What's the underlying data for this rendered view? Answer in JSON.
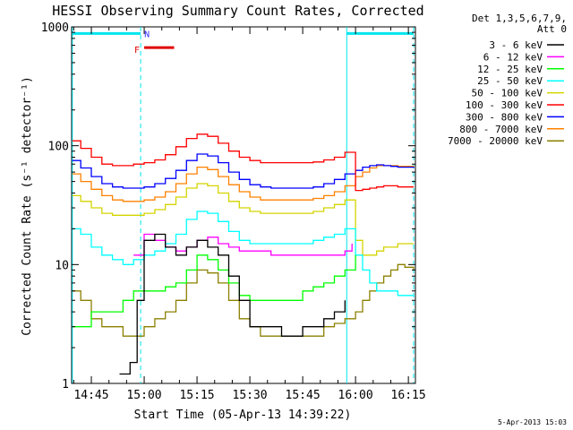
{
  "chart_data": {
    "type": "line",
    "title": "HESSI Observing Summary Count Rates, Corrected",
    "xlabel": "Start Time (05-Apr-13 14:39:22)",
    "ylabel": "Corrected Count Rate (s⁻¹ detector⁻¹)",
    "y_scale": "log",
    "ylim": [
      1,
      1000
    ],
    "xlim_minutes": [
      39.4,
      137.0
    ],
    "x_ticks": [
      {
        "label": "14:45",
        "m": 45
      },
      {
        "label": "15:00",
        "m": 60
      },
      {
        "label": "15:15",
        "m": 75
      },
      {
        "label": "15:30",
        "m": 90
      },
      {
        "label": "15:45",
        "m": 105
      },
      {
        "label": "16:00",
        "m": 120
      },
      {
        "label": "16:15",
        "m": 135
      }
    ],
    "y_ticks": [
      {
        "label": "1",
        "v": 1
      },
      {
        "label": "10",
        "v": 10
      },
      {
        "label": "100",
        "v": 100
      },
      {
        "label": "1000",
        "v": 1000
      }
    ],
    "legend_header": [
      "Det 1,3,5,6,7,9,",
      "Att 0"
    ],
    "night_flag_color": "#00e5ee",
    "flare_flag_color": "#e00000",
    "flag_labels": {
      "flare": "F",
      "night": "N"
    },
    "night_boundaries_m": [
      39.6,
      59.0,
      117.5,
      136.5
    ],
    "night_flag_y": 880,
    "flare_flag": {
      "x_start_m": 60.0,
      "x_end_m": 68.5,
      "y": 670
    },
    "series": [
      {
        "name": "3 - 6 keV",
        "color": "#000000",
        "x": [
          53,
          56,
          58,
          60,
          63,
          66,
          69,
          72,
          75,
          78,
          81,
          84,
          87,
          90,
          93,
          96,
          99,
          102,
          105,
          108,
          111,
          114,
          117
        ],
        "y": [
          1.2,
          1.5,
          5,
          16,
          18,
          14,
          12,
          14,
          16,
          14,
          12,
          8,
          5,
          3,
          3,
          3,
          2.5,
          2.5,
          3,
          3,
          3.5,
          4,
          5
        ]
      },
      {
        "name": "6 - 12 keV",
        "color": "#ff00ff",
        "x": [
          57,
          60,
          63,
          66,
          69,
          72,
          75,
          78,
          81,
          84,
          87,
          90,
          93,
          96,
          99,
          102,
          105,
          108,
          111,
          114,
          117,
          119
        ],
        "y": [
          12,
          18,
          16,
          14,
          13,
          14,
          16,
          17,
          15,
          14,
          13,
          13,
          13,
          12,
          12,
          12,
          12,
          12,
          12,
          12,
          13,
          15
        ]
      },
      {
        "name": "12 - 25 keV",
        "color": "#00ff00",
        "x": [
          39.6,
          42,
          45,
          48,
          51,
          54,
          57,
          60,
          63,
          66,
          69,
          72,
          75,
          78,
          81,
          84,
          87,
          90,
          93,
          96,
          99,
          102,
          105,
          108,
          111,
          114,
          117,
          120
        ],
        "y": [
          3,
          3,
          4,
          4,
          4,
          5,
          6,
          6,
          6,
          6.5,
          7,
          9,
          12,
          11,
          9,
          7,
          5.5,
          5,
          5,
          5,
          5,
          5,
          6,
          6.5,
          7,
          8,
          9,
          12
        ]
      },
      {
        "name": "25 - 50 keV",
        "color": "#00ffff",
        "x": [
          39.6,
          42,
          45,
          48,
          51,
          54,
          57,
          60,
          63,
          66,
          69,
          72,
          75,
          78,
          81,
          84,
          87,
          90,
          93,
          96,
          99,
          102,
          105,
          108,
          111,
          114,
          117,
          120,
          122,
          124,
          126,
          128,
          130,
          132,
          134,
          136.5
        ],
        "y": [
          20,
          18,
          14,
          12,
          11,
          10,
          11,
          12,
          13,
          15,
          18,
          24,
          28,
          27,
          23,
          19,
          16,
          15,
          15,
          15,
          15,
          15,
          15,
          16,
          17,
          18,
          20,
          12,
          9,
          7,
          6,
          6,
          6,
          5.5,
          5.5,
          5.5
        ]
      },
      {
        "name": "50 - 100 keV",
        "color": "#d4d400",
        "x": [
          39.6,
          42,
          45,
          48,
          51,
          54,
          57,
          60,
          63,
          66,
          69,
          72,
          75,
          78,
          81,
          84,
          87,
          90,
          93,
          96,
          99,
          102,
          105,
          108,
          111,
          114,
          117,
          120,
          122,
          124,
          126,
          128,
          130,
          132,
          134,
          136.5
        ],
        "y": [
          38,
          34,
          30,
          27,
          26,
          26,
          26,
          27,
          29,
          32,
          37,
          44,
          48,
          46,
          40,
          34,
          30,
          28,
          27,
          27,
          27,
          27,
          27,
          28,
          30,
          32,
          35,
          16,
          12,
          12,
          13,
          14,
          14,
          15,
          15,
          15
        ]
      },
      {
        "name": "100 - 300 keV",
        "color": "#ff0000",
        "x": [
          39.6,
          42,
          45,
          48,
          51,
          54,
          57,
          60,
          63,
          66,
          69,
          72,
          75,
          78,
          81,
          84,
          87,
          90,
          93,
          96,
          99,
          102,
          105,
          108,
          111,
          114,
          117,
          120,
          122,
          124,
          126,
          128,
          130,
          132,
          134,
          136.5
        ],
        "y": [
          110,
          95,
          80,
          70,
          68,
          68,
          70,
          72,
          76,
          84,
          98,
          115,
          125,
          120,
          105,
          90,
          80,
          75,
          72,
          72,
          72,
          72,
          72,
          73,
          76,
          80,
          88,
          42,
          43,
          44,
          45,
          46,
          46,
          45,
          45,
          45
        ]
      },
      {
        "name": "300 - 800 keV",
        "color": "#0000ff",
        "x": [
          39.6,
          42,
          45,
          48,
          51,
          54,
          57,
          60,
          63,
          66,
          69,
          72,
          75,
          78,
          81,
          84,
          87,
          90,
          93,
          96,
          99,
          102,
          105,
          108,
          111,
          114,
          117,
          120,
          122,
          124,
          126,
          128,
          130,
          132,
          134,
          136.5
        ],
        "y": [
          75,
          65,
          55,
          48,
          45,
          44,
          44,
          45,
          48,
          53,
          62,
          75,
          85,
          82,
          72,
          60,
          52,
          47,
          45,
          44,
          44,
          44,
          44,
          45,
          48,
          52,
          58,
          62,
          66,
          68,
          69,
          68,
          67,
          66,
          66,
          65
        ]
      },
      {
        "name": "800 - 7000 keV",
        "color": "#ff8000",
        "x": [
          39.6,
          42,
          45,
          48,
          51,
          54,
          57,
          60,
          63,
          66,
          69,
          72,
          75,
          78,
          81,
          84,
          87,
          90,
          93,
          96,
          99,
          102,
          105,
          108,
          111,
          114,
          117,
          120,
          122,
          124,
          126,
          128,
          130,
          132,
          134,
          136.5
        ],
        "y": [
          58,
          50,
          43,
          38,
          35,
          34,
          34,
          35,
          37,
          41,
          48,
          58,
          66,
          63,
          55,
          47,
          41,
          37,
          35,
          35,
          35,
          35,
          35,
          36,
          38,
          41,
          46,
          55,
          60,
          65,
          68,
          68,
          68,
          67,
          67,
          66
        ]
      },
      {
        "name": "7000 - 20000 keV",
        "color": "#8b8000",
        "x": [
          39.6,
          42,
          45,
          48,
          51,
          54,
          57,
          60,
          63,
          66,
          69,
          72,
          75,
          78,
          81,
          84,
          87,
          90,
          93,
          96,
          99,
          102,
          105,
          108,
          111,
          114,
          117,
          120,
          122,
          124,
          126,
          128,
          130,
          132,
          134,
          136.5
        ],
        "y": [
          6,
          5,
          3.5,
          3,
          3,
          2.5,
          2.5,
          3,
          3.5,
          4,
          5,
          7,
          9,
          8.5,
          7,
          5,
          3.5,
          3,
          2.5,
          2.5,
          2.5,
          2.5,
          2.5,
          2.5,
          3,
          3.2,
          3.5,
          4,
          5,
          6,
          7,
          8,
          9,
          10,
          9.5,
          9
        ]
      }
    ]
  },
  "footer": {
    "timestamp": "5-Apr-2013 15:03"
  }
}
